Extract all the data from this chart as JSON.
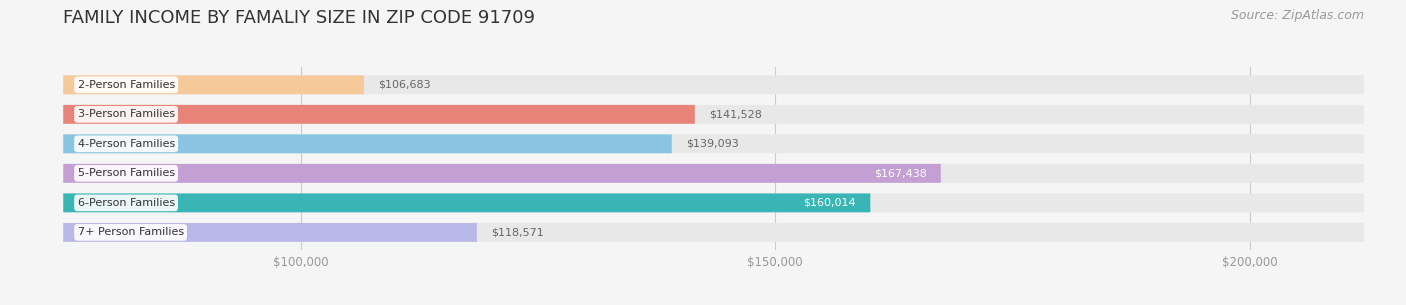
{
  "title": "FAMILY INCOME BY FAMALIY SIZE IN ZIP CODE 91709",
  "source": "Source: ZipAtlas.com",
  "categories": [
    "2-Person Families",
    "3-Person Families",
    "4-Person Families",
    "5-Person Families",
    "6-Person Families",
    "7+ Person Families"
  ],
  "values": [
    106683,
    141528,
    139093,
    167438,
    160014,
    118571
  ],
  "bar_colors": [
    "#f5c99a",
    "#e8837a",
    "#89c4e1",
    "#c49fd4",
    "#3ab5b5",
    "#b8b8e8"
  ],
  "label_colors": [
    "#555555",
    "#555555",
    "#555555",
    "#ffffff",
    "#ffffff",
    "#555555"
  ],
  "xlim": [
    75000,
    212000
  ],
  "xticks": [
    100000,
    150000,
    200000
  ],
  "xtick_labels": [
    "$100,000",
    "$150,000",
    "$200,000"
  ],
  "bg_color": "#f5f5f5",
  "bar_bg_color": "#e8e8e8",
  "title_fontsize": 13,
  "source_fontsize": 9,
  "bar_height": 0.62,
  "value_threshold": 155000
}
